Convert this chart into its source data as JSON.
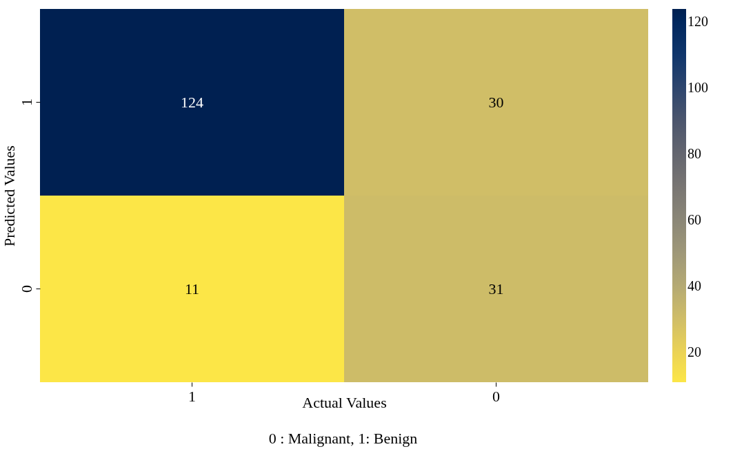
{
  "chart_data": {
    "type": "heatmap",
    "xlabel": "Actual Values",
    "ylabel": "Predicted Values",
    "categories": [
      "1",
      "0"
    ],
    "y_categories": [
      "1",
      "0"
    ],
    "cells": [
      [
        124,
        30
      ],
      [
        11,
        31
      ]
    ],
    "data_labels": true,
    "clim": [
      11,
      124
    ],
    "cticks": [
      20,
      40,
      60,
      80,
      100,
      120
    ],
    "annotations": [
      "0 : Malignant,  1: Benign"
    ]
  }
}
